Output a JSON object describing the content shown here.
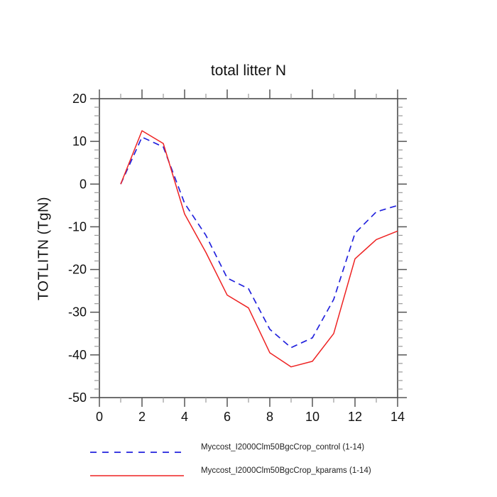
{
  "chart_data": {
    "type": "line",
    "title": "total litter N",
    "xlabel": "",
    "ylabel": "TOTLITN  (TgN)",
    "xlim": [
      0,
      14
    ],
    "ylim": [
      -50,
      20
    ],
    "x_major_step": 2,
    "x_minor_step": 1,
    "y_major_step": 10,
    "y_minor_step": 2,
    "grid": false,
    "legend_position": "bottom",
    "x": [
      1,
      2,
      3,
      4,
      5,
      6,
      7,
      8,
      9,
      10,
      11,
      12,
      13,
      14
    ],
    "series": [
      {
        "name": "Myccost_I2000Clm50BgcCrop_control (1-14)",
        "color": "#2222dd",
        "style": "dashed",
        "values": [
          0,
          11,
          8.7,
          -4.5,
          -12,
          -22,
          -24.5,
          -34,
          -38.3,
          -36,
          -27,
          -11.5,
          -6.5,
          -5
        ]
      },
      {
        "name": "Myccost_I2000Clm50BgcCrop_kparams (1-14)",
        "color": "#ee2222",
        "style": "solid",
        "values": [
          0,
          12.5,
          9.5,
          -7,
          -16,
          -26,
          -29,
          -39.5,
          -42.8,
          -41.5,
          -35,
          -17.5,
          -13,
          -11
        ]
      }
    ]
  },
  "colors": {
    "axis_box": "#4a4a4a",
    "major_tick": "#555555",
    "minor_tick": "#999999",
    "text": "#111111",
    "background": "#ffffff"
  }
}
